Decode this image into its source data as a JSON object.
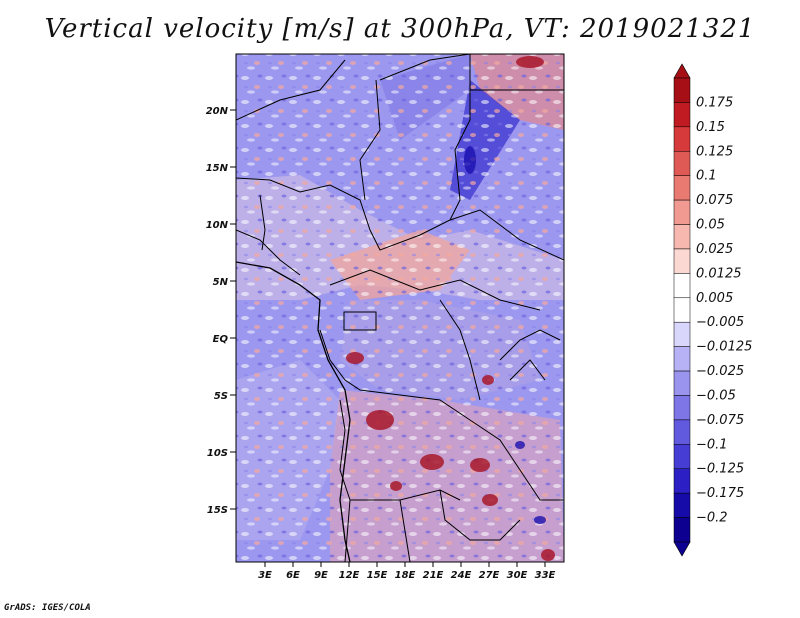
{
  "title": "Vertical velocity [m/s] at 300hPa, VT: 2019021321",
  "credit": "GrADS: IGES/COLA",
  "map": {
    "lat_ticks": [
      "20N",
      "15N",
      "10N",
      "5N",
      "EQ",
      "5S",
      "10S",
      "15S"
    ],
    "lon_ticks": [
      "3E",
      "6E",
      "9E",
      "12E",
      "15E",
      "18E",
      "21E",
      "24E",
      "27E",
      "30E",
      "33E"
    ]
  },
  "colorbar": {
    "levels": [
      "0.175",
      "0.15",
      "0.125",
      "0.1",
      "0.075",
      "0.05",
      "0.025",
      "0.0125",
      "0.005",
      "−0.005",
      "−0.0125",
      "−0.025",
      "−0.05",
      "−0.075",
      "−0.1",
      "−0.125",
      "−0.175",
      "−0.2"
    ],
    "colors": [
      "#a50f15",
      "#c01a22",
      "#d73a3a",
      "#e05a55",
      "#e87a72",
      "#f09a92",
      "#f7b8b0",
      "#fcd8d2",
      "#ffffff",
      "#ffffff",
      "#d8d6fb",
      "#b6b2f5",
      "#9a94ee",
      "#7e76e6",
      "#625ade",
      "#463ed4",
      "#2c20c4",
      "#160aa8",
      "#0d0090"
    ]
  }
}
